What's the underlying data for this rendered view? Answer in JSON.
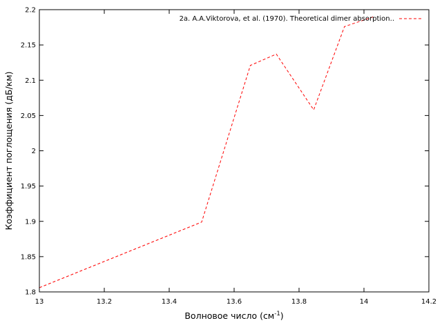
{
  "chart_data": {
    "type": "line",
    "title": "",
    "xlabel": "Волновое число (см",
    "xlabel_superscript": "-1",
    "xlabel_suffix": ")",
    "ylabel": "Коэффициент поглощения (дБ/км)",
    "xlim": [
      13,
      14.2
    ],
    "ylim": [
      1.8,
      2.2
    ],
    "x_ticks": [
      13,
      13.2,
      13.4,
      13.6,
      13.8,
      14,
      14.2
    ],
    "x_tick_labels": [
      "13",
      "13.2",
      "13.4",
      "13.6",
      "13.8",
      "14",
      "14.2"
    ],
    "y_ticks": [
      1.8,
      1.85,
      1.9,
      1.95,
      2,
      2.05,
      2.1,
      2.15,
      2.2
    ],
    "y_tick_labels": [
      "1.8",
      "1.85",
      "1.9",
      "1.95",
      "2",
      "2.05",
      "2.1",
      "2.15",
      "2.2"
    ],
    "grid": false,
    "legend_position": "top-right",
    "series": [
      {
        "name": "2a. A.A.Viktorova, et al. (1970).  Theoretical dimer absorption..",
        "color": "#ff0000",
        "line_style": "dashed",
        "x": [
          13.0,
          13.5,
          13.65,
          13.73,
          13.845,
          13.94,
          14.03
        ],
        "y": [
          1.806,
          1.899,
          2.121,
          2.137,
          2.058,
          2.176,
          2.19
        ]
      }
    ]
  }
}
